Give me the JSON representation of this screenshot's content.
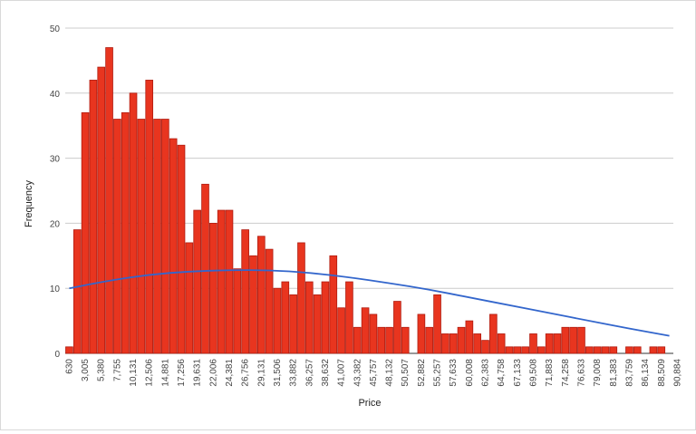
{
  "chart_data": {
    "type": "bar",
    "title": "",
    "xlabel": "Price",
    "ylabel": "Frequency",
    "ylim": [
      0,
      50
    ],
    "yticks": [
      0,
      10,
      20,
      30,
      40,
      50
    ],
    "grid": true,
    "bar_color": "#e8351f",
    "bar_stroke": "#b01c10",
    "curve_color": "#3366cc",
    "xtick_labels": [
      "630",
      "3,005",
      "5,380",
      "7,755",
      "10,131",
      "12,506",
      "14,881",
      "17,256",
      "19,631",
      "22,006",
      "24,381",
      "26,756",
      "29,131",
      "31,506",
      "33,882",
      "36,257",
      "38,632",
      "41,007",
      "43,382",
      "45,757",
      "48,132",
      "50,507",
      "52,882",
      "55,257",
      "57,633",
      "60,008",
      "62,383",
      "64,758",
      "67,133",
      "69,508",
      "71,883",
      "74,258",
      "76,633",
      "79,008",
      "81,383",
      "83,759",
      "86,134",
      "88,509",
      "90,884"
    ],
    "values": [
      1,
      19,
      37,
      42,
      44,
      47,
      36,
      37,
      40,
      36,
      42,
      36,
      36,
      33,
      32,
      17,
      22,
      26,
      20,
      22,
      22,
      13,
      19,
      15,
      18,
      16,
      10,
      11,
      9,
      17,
      11,
      9,
      11,
      15,
      7,
      11,
      4,
      7,
      6,
      4,
      4,
      8,
      4,
      0,
      6,
      4,
      9,
      3,
      3,
      4,
      5,
      3,
      2,
      6,
      3,
      1,
      1,
      1,
      3,
      1,
      3,
      3,
      4,
      4,
      4,
      1,
      1,
      1,
      1,
      0,
      1,
      1,
      0,
      1,
      1,
      0
    ],
    "curve": {
      "x_index": [
        0,
        5,
        10,
        15,
        20,
        25,
        30,
        35,
        40,
        45,
        50,
        55,
        60,
        65,
        70,
        75
      ],
      "y": [
        10,
        11.2,
        12.1,
        12.6,
        12.8,
        12.8,
        12.4,
        11.7,
        10.8,
        9.8,
        8.6,
        7.4,
        6.2,
        5.0,
        3.8,
        2.7
      ]
    }
  }
}
